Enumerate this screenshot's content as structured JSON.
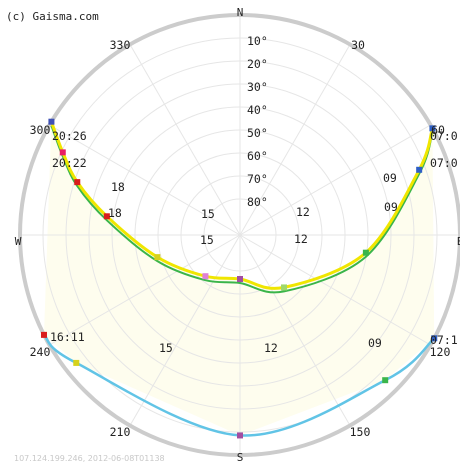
{
  "credit": "(c) Gaisma.com",
  "footer": "107.124.199.246, 2012-06-08T01138",
  "compass": {
    "N": "N",
    "S": "S",
    "W": "W",
    "E": "E"
  },
  "colors": {
    "ring_stroke": "#cccccc",
    "grid": "#e6e6e6",
    "day_fill": "#fefdee",
    "summer_path": "#f0e600",
    "equinox_path": "#3ab54a",
    "winter_path": "#61c4e6",
    "hour_06": "#2e5fc5",
    "hour_07": "#2e5fc5",
    "hour_08": "#7da0e0",
    "hour_09": "#3ab54a",
    "hour_10": "#62c462",
    "hour_11": "#9fd86b",
    "hour_12": "#a24ea0",
    "hour_13": "#e07fd7",
    "hour_14": "#e3c450",
    "hour_15": "#d6d21c",
    "hour_16": "#f0a94a",
    "hour_17": "#e86a6a",
    "hour_18": "#d91c1c",
    "hour_19": "#c2185b",
    "hour_20": "#e91e63",
    "hour_21": "#3f51b5"
  },
  "chart_data": {
    "type": "scatter",
    "title": "",
    "description_text": "",
    "elevation_rings": [
      "10°",
      "20°",
      "30°",
      "40°",
      "50°",
      "60°",
      "70°",
      "80°"
    ],
    "azimuth_labels": [
      "330",
      "30",
      "300",
      "60",
      "240",
      "120",
      "210",
      "150"
    ],
    "series": [
      {
        "name": "",
        "points": [
          {
            "az": 301,
            "alt": 0,
            "label": "300"
          },
          {
            "az": 295,
            "alt": 10,
            "label": "20:26"
          },
          {
            "az": 288,
            "alt": 20,
            "label": "20:22"
          },
          {
            "az": 278,
            "alt": 35,
            "label": "18"
          },
          {
            "az": 255,
            "alt": 55,
            "label": "15"
          },
          {
            "az": 220,
            "alt": 68,
            "label": ""
          },
          {
            "az": 180,
            "alt": 72,
            "label": "12"
          },
          {
            "az": 140,
            "alt": 62,
            "label": ""
          },
          {
            "az": 98,
            "alt": 38,
            "label": "09"
          },
          {
            "az": 70,
            "alt": 12,
            "label": "07:0"
          },
          {
            "az": 61,
            "alt": 0,
            "label": "60"
          }
        ]
      },
      {
        "name": "",
        "points": [
          {
            "az": 243,
            "alt": 0,
            "label": "16:11"
          },
          {
            "az": 232,
            "alt": 5,
            "label": "15"
          },
          {
            "az": 180,
            "alt": 8,
            "label": "12"
          },
          {
            "az": 135,
            "alt": 6,
            "label": "09"
          },
          {
            "az": 118,
            "alt": 0,
            "label": "07:1"
          }
        ]
      }
    ],
    "hour_labels": {
      "summer": [
        "20:26",
        "20:22",
        "18",
        "18",
        "15",
        "15",
        "12",
        "12",
        "09",
        "09",
        "07:0",
        "07:0"
      ],
      "winter": [
        "16:11",
        "15",
        "12",
        "09",
        "07:1",
        "240",
        "120"
      ]
    }
  }
}
